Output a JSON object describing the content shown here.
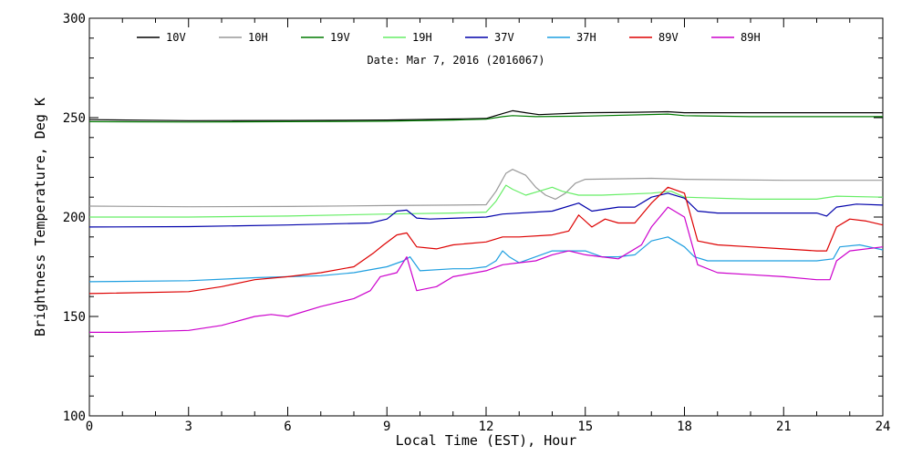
{
  "chart_data": {
    "type": "line",
    "title": "Date: Mar  7, 2016 (2016067)",
    "xlabel": "Local Time (EST), Hour",
    "ylabel": "Brightness Temperature, Deg K",
    "xlim": [
      0,
      24
    ],
    "ylim": [
      100,
      300
    ],
    "xticks": [
      0,
      3,
      6,
      9,
      12,
      15,
      18,
      21,
      24
    ],
    "yticks": [
      100,
      150,
      200,
      250,
      300
    ],
    "grid": false,
    "legend": "top",
    "series": [
      {
        "name": "10V",
        "color": "#000000",
        "points": [
          [
            0,
            249
          ],
          [
            3,
            248.5
          ],
          [
            6,
            248.6
          ],
          [
            9,
            248.8
          ],
          [
            11,
            249.3
          ],
          [
            12,
            249.6
          ],
          [
            12.5,
            252
          ],
          [
            12.8,
            253.5
          ],
          [
            13.2,
            252.5
          ],
          [
            13.6,
            251.5
          ],
          [
            15,
            252.5
          ],
          [
            16.5,
            252.7
          ],
          [
            17.5,
            253
          ],
          [
            18,
            252.5
          ],
          [
            20,
            252.5
          ],
          [
            22,
            252.5
          ],
          [
            24,
            252.5
          ]
        ]
      },
      {
        "name": "10H",
        "color": "#999999",
        "points": [
          [
            0,
            205.5
          ],
          [
            3,
            205.2
          ],
          [
            6,
            205.3
          ],
          [
            9,
            205.8
          ],
          [
            11,
            206
          ],
          [
            12,
            206.2
          ],
          [
            12.3,
            213
          ],
          [
            12.6,
            222
          ],
          [
            12.8,
            224
          ],
          [
            13.2,
            221
          ],
          [
            13.5,
            215
          ],
          [
            13.8,
            211
          ],
          [
            14.1,
            209
          ],
          [
            14.4,
            212
          ],
          [
            14.7,
            217
          ],
          [
            15,
            219
          ],
          [
            17,
            219.5
          ],
          [
            18,
            219
          ],
          [
            21,
            218.5
          ],
          [
            24,
            218.5
          ]
        ]
      },
      {
        "name": "19V",
        "color": "#007a00",
        "points": [
          [
            0,
            248
          ],
          [
            3,
            247.8
          ],
          [
            6,
            248
          ],
          [
            9,
            248.2
          ],
          [
            11,
            248.8
          ],
          [
            12,
            249.2
          ],
          [
            12.5,
            250.5
          ],
          [
            12.8,
            251
          ],
          [
            13.5,
            250.5
          ],
          [
            15,
            250.8
          ],
          [
            17.5,
            251.8
          ],
          [
            18,
            251
          ],
          [
            20,
            250.5
          ],
          [
            22,
            250.5
          ],
          [
            24,
            250.5
          ]
        ]
      },
      {
        "name": "19H",
        "color": "#66ee66",
        "points": [
          [
            0,
            200
          ],
          [
            3,
            200
          ],
          [
            6,
            200.5
          ],
          [
            9,
            201.5
          ],
          [
            11,
            202
          ],
          [
            12,
            202.5
          ],
          [
            12.3,
            208
          ],
          [
            12.6,
            216
          ],
          [
            12.8,
            214
          ],
          [
            13.2,
            211
          ],
          [
            13.6,
            213
          ],
          [
            14,
            215
          ],
          [
            14.3,
            213
          ],
          [
            14.8,
            211
          ],
          [
            15.5,
            211
          ],
          [
            17,
            212
          ],
          [
            17.6,
            213
          ],
          [
            18,
            210
          ],
          [
            20,
            209
          ],
          [
            22,
            209
          ],
          [
            22.6,
            210.5
          ],
          [
            24,
            210
          ]
        ]
      },
      {
        "name": "37V",
        "color": "#0000aa",
        "points": [
          [
            0,
            195
          ],
          [
            3,
            195.2
          ],
          [
            6,
            196
          ],
          [
            8.5,
            197
          ],
          [
            9,
            199
          ],
          [
            9.3,
            203
          ],
          [
            9.6,
            203.5
          ],
          [
            9.9,
            199.5
          ],
          [
            10.3,
            199
          ],
          [
            12,
            200
          ],
          [
            12.5,
            201.5
          ],
          [
            14,
            203
          ],
          [
            14.8,
            207
          ],
          [
            15.2,
            203
          ],
          [
            16,
            205
          ],
          [
            16.5,
            205
          ],
          [
            17,
            210
          ],
          [
            17.5,
            212
          ],
          [
            18,
            209.5
          ],
          [
            18.4,
            203
          ],
          [
            19,
            202
          ],
          [
            22,
            202
          ],
          [
            22.3,
            200.5
          ],
          [
            22.6,
            205
          ],
          [
            23.2,
            206.5
          ],
          [
            24,
            206
          ]
        ]
      },
      {
        "name": "37H",
        "color": "#1f9fe0",
        "points": [
          [
            0,
            167.5
          ],
          [
            3,
            168
          ],
          [
            5,
            169.5
          ],
          [
            6,
            170
          ],
          [
            7,
            170.5
          ],
          [
            8,
            172
          ],
          [
            9,
            175
          ],
          [
            9.5,
            178
          ],
          [
            9.7,
            180
          ],
          [
            10,
            173
          ],
          [
            11,
            174
          ],
          [
            11.5,
            174
          ],
          [
            12,
            175
          ],
          [
            12.3,
            178
          ],
          [
            12.5,
            183
          ],
          [
            12.7,
            180
          ],
          [
            13,
            177
          ],
          [
            13.5,
            180
          ],
          [
            14,
            183
          ],
          [
            14.5,
            183
          ],
          [
            15,
            183
          ],
          [
            15.5,
            180
          ],
          [
            16,
            180
          ],
          [
            16.5,
            181
          ],
          [
            17,
            188
          ],
          [
            17.5,
            190
          ],
          [
            18,
            185
          ],
          [
            18.3,
            180
          ],
          [
            18.7,
            178
          ],
          [
            20,
            178
          ],
          [
            22,
            178
          ],
          [
            22.5,
            179
          ],
          [
            22.7,
            185
          ],
          [
            23.3,
            186
          ],
          [
            24,
            183.5
          ]
        ]
      },
      {
        "name": "89V",
        "color": "#dd0000",
        "points": [
          [
            0,
            161.5
          ],
          [
            3,
            162.5
          ],
          [
            4,
            165
          ],
          [
            5,
            168.5
          ],
          [
            6,
            170
          ],
          [
            7,
            172
          ],
          [
            8,
            175
          ],
          [
            8.6,
            182
          ],
          [
            8.9,
            186
          ],
          [
            9.3,
            191
          ],
          [
            9.6,
            192
          ],
          [
            9.9,
            185
          ],
          [
            10.5,
            184
          ],
          [
            11,
            186
          ],
          [
            12,
            187.5
          ],
          [
            12.5,
            190
          ],
          [
            13,
            190
          ],
          [
            14,
            191
          ],
          [
            14.5,
            193
          ],
          [
            14.8,
            201
          ],
          [
            15.2,
            195
          ],
          [
            15.6,
            199
          ],
          [
            16,
            197
          ],
          [
            16.5,
            197
          ],
          [
            17,
            207
          ],
          [
            17.5,
            215
          ],
          [
            18,
            212
          ],
          [
            18.4,
            188
          ],
          [
            19,
            186
          ],
          [
            20,
            185
          ],
          [
            21,
            184
          ],
          [
            22,
            183
          ],
          [
            22.3,
            183
          ],
          [
            22.6,
            195
          ],
          [
            23,
            199
          ],
          [
            23.5,
            198
          ],
          [
            24,
            196
          ]
        ]
      },
      {
        "name": "89H",
        "color": "#cc00cc",
        "points": [
          [
            0,
            142
          ],
          [
            1,
            142
          ],
          [
            3,
            143
          ],
          [
            4,
            145.5
          ],
          [
            5,
            150
          ],
          [
            5.5,
            151
          ],
          [
            6,
            150
          ],
          [
            7,
            155
          ],
          [
            8,
            159
          ],
          [
            8.5,
            163
          ],
          [
            8.8,
            170
          ],
          [
            9.3,
            172
          ],
          [
            9.6,
            180
          ],
          [
            9.9,
            163
          ],
          [
            10.5,
            165
          ],
          [
            11,
            170
          ],
          [
            12,
            173
          ],
          [
            12.5,
            176
          ],
          [
            13,
            177
          ],
          [
            13.5,
            178
          ],
          [
            14,
            181
          ],
          [
            14.5,
            183
          ],
          [
            15,
            181
          ],
          [
            15.5,
            180
          ],
          [
            16,
            179
          ],
          [
            16.7,
            186
          ],
          [
            17,
            195
          ],
          [
            17.5,
            205
          ],
          [
            18,
            200
          ],
          [
            18.4,
            176
          ],
          [
            19,
            172
          ],
          [
            20,
            171
          ],
          [
            21,
            170
          ],
          [
            22,
            168.5
          ],
          [
            22.4,
            168.5
          ],
          [
            22.6,
            178
          ],
          [
            23,
            183
          ],
          [
            24,
            185
          ]
        ]
      }
    ]
  }
}
